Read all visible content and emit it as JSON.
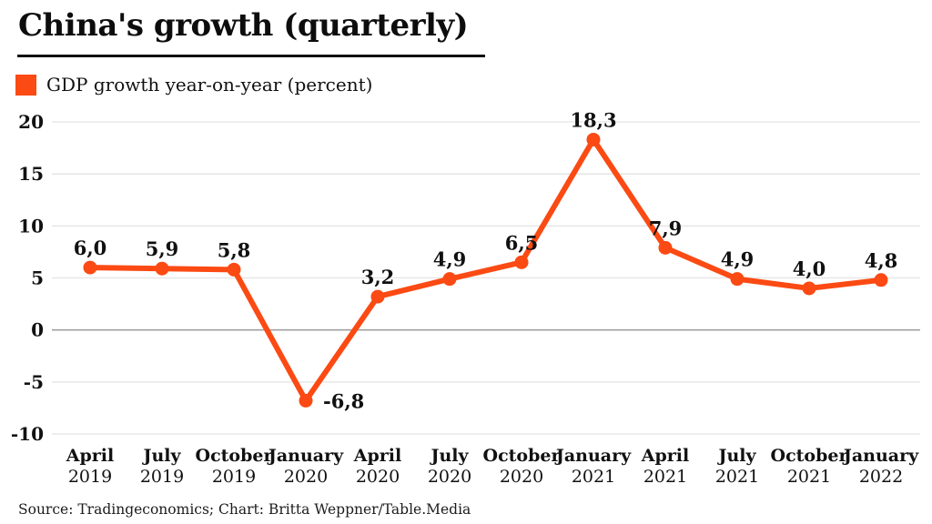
{
  "header": {
    "title": "China's growth (quarterly)"
  },
  "legend": {
    "label": "GDP growth year-on-year (percent)"
  },
  "footer": {
    "text": "Source: Tradingeconomics; Chart: Britta Weppner/Table.Media"
  },
  "colors": {
    "accent": "#FB4A13",
    "grid": "#E3E3E3",
    "zero_line": "#A0A0A0",
    "text": "#111111"
  },
  "chart_data": {
    "type": "line",
    "title": "China's growth (quarterly)",
    "series_name": "GDP growth year-on-year (percent)",
    "categories": [
      {
        "month": "April",
        "year": "2019"
      },
      {
        "month": "July",
        "year": "2019"
      },
      {
        "month": "October",
        "year": "2019"
      },
      {
        "month": "January",
        "year": "2020"
      },
      {
        "month": "April",
        "year": "2020"
      },
      {
        "month": "July",
        "year": "2020"
      },
      {
        "month": "October",
        "year": "2020"
      },
      {
        "month": "January",
        "year": "2021"
      },
      {
        "month": "April",
        "year": "2021"
      },
      {
        "month": "July",
        "year": "2021"
      },
      {
        "month": "October",
        "year": "2021"
      },
      {
        "month": "January",
        "year": "2022"
      }
    ],
    "values": [
      6.0,
      5.9,
      5.8,
      -6.8,
      3.2,
      4.9,
      6.5,
      18.3,
      7.9,
      4.9,
      4.0,
      4.8
    ],
    "value_labels": [
      "6,0",
      "5,9",
      "5,8",
      "-6,8",
      "3,2",
      "4,9",
      "6,5",
      "18,3",
      "7,9",
      "4,9",
      "4,0",
      "4,8"
    ],
    "value_label_positions": [
      "top",
      "top",
      "top",
      "right",
      "top",
      "top",
      "top",
      "top",
      "top",
      "top",
      "top",
      "top"
    ],
    "yticks": [
      20,
      15,
      10,
      5,
      0,
      -5,
      -10
    ],
    "ytick_labels": [
      "20",
      "15",
      "10",
      "5",
      "0",
      "-5",
      "-10"
    ],
    "ylim": [
      -10,
      20
    ],
    "grid": true,
    "legend_position": "top-left",
    "xlabel": "",
    "ylabel": ""
  }
}
